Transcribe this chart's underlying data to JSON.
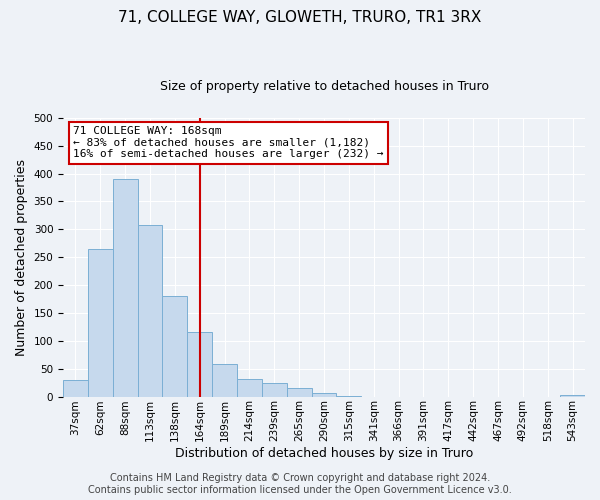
{
  "title": "71, COLLEGE WAY, GLOWETH, TRURO, TR1 3RX",
  "subtitle": "Size of property relative to detached houses in Truro",
  "xlabel": "Distribution of detached houses by size in Truro",
  "ylabel": "Number of detached properties",
  "bin_labels": [
    "37sqm",
    "62sqm",
    "88sqm",
    "113sqm",
    "138sqm",
    "164sqm",
    "189sqm",
    "214sqm",
    "239sqm",
    "265sqm",
    "290sqm",
    "315sqm",
    "341sqm",
    "366sqm",
    "391sqm",
    "417sqm",
    "442sqm",
    "467sqm",
    "492sqm",
    "518sqm",
    "543sqm"
  ],
  "bar_values": [
    30,
    265,
    390,
    308,
    180,
    115,
    58,
    32,
    25,
    15,
    7,
    1,
    0,
    0,
    0,
    0,
    0,
    0,
    0,
    0,
    2
  ],
  "bar_color": "#c6d9ed",
  "bar_edgecolor": "#7bafd4",
  "property_line_label": "71 COLLEGE WAY: 168sqm",
  "annotation_line1": "← 83% of detached houses are smaller (1,182)",
  "annotation_line2": "16% of semi-detached houses are larger (232) →",
  "annotation_box_facecolor": "#ffffff",
  "annotation_box_edgecolor": "#cc0000",
  "vline_color": "#cc0000",
  "ylim": [
    0,
    500
  ],
  "yticks": [
    0,
    50,
    100,
    150,
    200,
    250,
    300,
    350,
    400,
    450,
    500
  ],
  "footer1": "Contains HM Land Registry data © Crown copyright and database right 2024.",
  "footer2": "Contains public sector information licensed under the Open Government Licence v3.0.",
  "background_color": "#eef2f7",
  "plot_bg_color": "#eef2f7",
  "grid_color": "#ffffff",
  "title_fontsize": 11,
  "subtitle_fontsize": 9,
  "axis_label_fontsize": 9,
  "tick_fontsize": 7.5,
  "annotation_fontsize": 8,
  "footer_fontsize": 7
}
